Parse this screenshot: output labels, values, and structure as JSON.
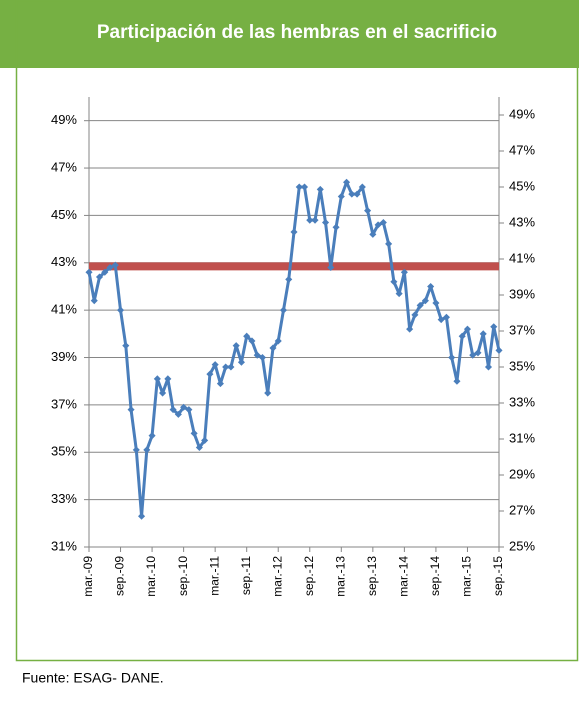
{
  "chart_data": {
    "type": "line",
    "title": "Participación de las hembras en el sacrificio",
    "categories": [
      "mar.-09",
      null,
      null,
      null,
      null,
      null,
      "sep.-09",
      null,
      null,
      null,
      null,
      null,
      "mar.-10",
      null,
      null,
      null,
      null,
      null,
      "sep.-10",
      null,
      null,
      null,
      null,
      null,
      "mar.-11",
      null,
      null,
      null,
      null,
      null,
      "sep.-11",
      null,
      null,
      null,
      null,
      null,
      "mar.-12",
      null,
      null,
      null,
      null,
      null,
      "sep.-12",
      null,
      null,
      null,
      null,
      null,
      "mar.-13",
      null,
      null,
      null,
      null,
      null,
      "sep.-13",
      null,
      null,
      null,
      null,
      null,
      "mar.-14",
      null,
      null,
      null,
      null,
      null,
      "sep.-14",
      null,
      null,
      null,
      null,
      null,
      "mar.-15",
      null,
      null,
      null,
      null,
      null,
      "sep.-15"
    ],
    "series": [
      {
        "color": "#c0504d",
        "values": [
          42.85,
          42.85,
          42.85,
          42.85,
          42.85,
          42.85,
          42.85,
          42.85,
          42.85,
          42.85,
          42.85,
          42.85,
          42.85,
          42.85,
          42.85,
          42.85,
          42.85,
          42.85,
          42.85,
          42.85,
          42.85,
          42.85,
          42.85,
          42.85,
          42.85,
          42.85,
          42.85,
          42.85,
          42.85,
          42.85,
          42.85,
          42.85,
          42.85,
          42.85,
          42.85,
          42.85,
          42.85,
          42.85,
          42.85,
          42.85,
          42.85,
          42.85,
          42.85,
          42.85,
          42.85,
          42.85,
          42.85,
          42.85,
          42.85,
          42.85,
          42.85,
          42.85,
          42.85,
          42.85,
          42.85,
          42.85,
          42.85,
          42.85,
          42.85,
          42.85,
          42.85,
          42.85,
          42.85,
          42.85,
          42.85,
          42.85,
          42.85,
          42.85,
          42.85,
          42.85,
          42.85,
          42.85,
          42.85,
          42.85,
          42.85,
          42.85,
          42.85,
          42.85,
          42.85
        ]
      },
      {
        "color": "#4a7ebb",
        "values": [
          42.6,
          41.4,
          42.4,
          42.6,
          42.8,
          42.9,
          41.0,
          39.5,
          36.8,
          35.1,
          32.3,
          35.1,
          35.7,
          38.1,
          37.5,
          38.1,
          36.8,
          36.6,
          36.9,
          36.8,
          35.8,
          35.2,
          35.5,
          38.3,
          38.7,
          37.9,
          38.6,
          38.6,
          39.5,
          38.8,
          39.9,
          39.7,
          39.1,
          39.0,
          37.5,
          39.4,
          39.7,
          41.0,
          42.3,
          44.3,
          46.2,
          46.2,
          44.8,
          44.8,
          46.1,
          44.7,
          42.8,
          44.5,
          45.8,
          46.4,
          45.9,
          45.9,
          46.2,
          45.2,
          44.2,
          44.6,
          44.7,
          43.8,
          42.2,
          41.7,
          42.6,
          40.2,
          40.8,
          41.2,
          41.4,
          42.0,
          41.3,
          40.6,
          40.7,
          39.0,
          38.0,
          39.9,
          40.2,
          39.1,
          39.2,
          40.0,
          38.6,
          40.3,
          39.3
        ]
      }
    ],
    "ylim": [
      31,
      50
    ],
    "yticks": [
      {
        "value": 31,
        "label": "31%"
      },
      {
        "value": 33,
        "label": "33%"
      },
      {
        "value": 35,
        "label": "35%"
      },
      {
        "value": 37,
        "label": "37%"
      },
      {
        "value": 39,
        "label": "39%"
      },
      {
        "value": 41,
        "label": "41%"
      },
      {
        "value": 43,
        "label": "43%"
      },
      {
        "value": 45,
        "label": "45%"
      },
      {
        "value": 47,
        "label": "47%"
      },
      {
        "value": 49,
        "label": "49%"
      }
    ],
    "y2lim": [
      25,
      50
    ],
    "y2ticks": [
      {
        "value": 25,
        "label": "25%"
      },
      {
        "value": 27,
        "label": "27%"
      },
      {
        "value": 29,
        "label": "29%"
      },
      {
        "value": 31,
        "label": "31%"
      },
      {
        "value": 33,
        "label": "33%"
      },
      {
        "value": 35,
        "label": "35%"
      },
      {
        "value": 37,
        "label": "37%"
      },
      {
        "value": 39,
        "label": "39%"
      },
      {
        "value": 41,
        "label": "41%"
      },
      {
        "value": 43,
        "label": "43%"
      },
      {
        "value": 45,
        "label": "45%"
      },
      {
        "value": 47,
        "label": "47%"
      },
      {
        "value": 49,
        "label": "49%"
      }
    ],
    "grid": true
  },
  "source": "Fuente: ESAG- DANE."
}
